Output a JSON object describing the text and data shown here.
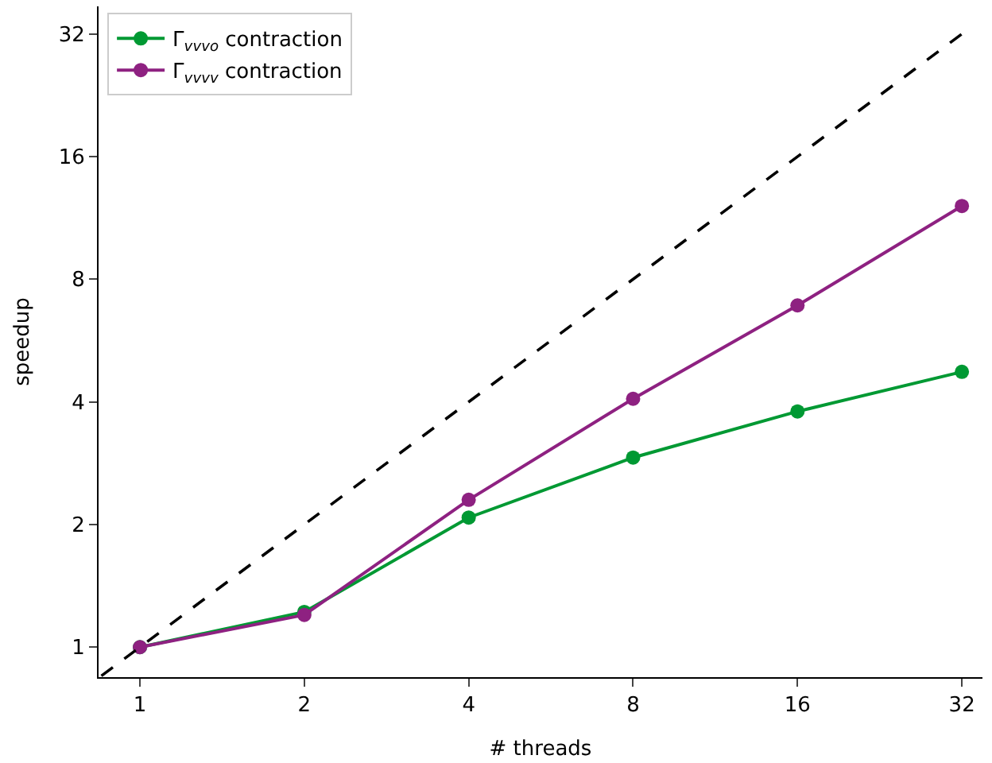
{
  "chart_data": {
    "type": "line",
    "xlabel": "# threads",
    "ylabel": "speedup",
    "log": "xy",
    "x": [
      1,
      2,
      4,
      8,
      16,
      32
    ],
    "series": [
      {
        "name": "Γ$_{vvvo}$ contraction",
        "color": "#009933",
        "values": [
          1,
          1.22,
          2.08,
          2.92,
          3.79,
          4.74
        ],
        "marker": "circle",
        "line_style": "solid"
      },
      {
        "name": "Γ$_{vvvv}$ contraction",
        "color": "#8e2181",
        "values": [
          1,
          1.2,
          2.3,
          4.07,
          6.9,
          12.1
        ],
        "marker": "circle",
        "line_style": "solid"
      },
      {
        "color": "#000000",
        "x": [
          0.85,
          32
        ],
        "values": [
          0.85,
          32
        ],
        "marker": "none",
        "line_style": "dashed"
      }
    ],
    "xlim": [
      0.84,
      34.9
    ],
    "ylim": [
      0.844,
      37.4
    ],
    "xticks": [
      1,
      2,
      4,
      8,
      16,
      32
    ],
    "yticks": [
      1,
      2,
      4,
      8,
      16,
      32
    ],
    "legend": "top left"
  }
}
